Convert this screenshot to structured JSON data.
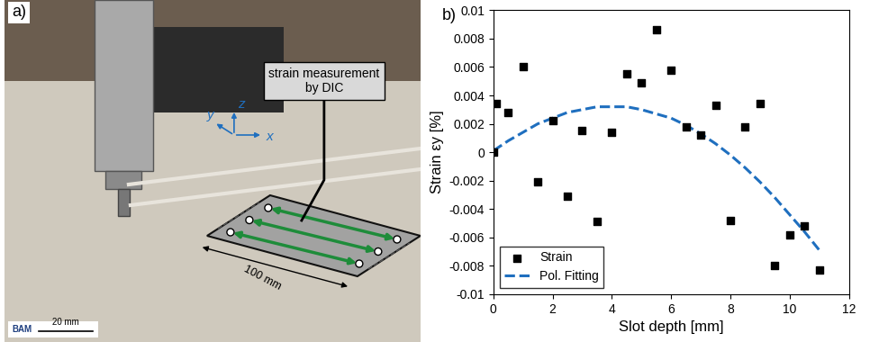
{
  "photo_panel": {
    "panel_label": "a)",
    "callout": "strain measurement\nby DIC",
    "length_label": "100 mm",
    "axis_labels": [
      "x",
      "y",
      "z"
    ],
    "logo": "BAM",
    "scale_bar": "20 mm"
  },
  "chart_data": {
    "type": "scatter",
    "panel_label": "b)",
    "x_label": "Slot depth [mm]",
    "y_label": "Strain εy [%]",
    "xlim": [
      0,
      12
    ],
    "xticks": [
      0,
      2,
      4,
      6,
      8,
      10,
      12
    ],
    "ylim": [
      -0.01,
      0.01
    ],
    "yticks": [
      -0.01,
      -0.008,
      -0.006,
      -0.004,
      -0.002,
      0,
      0.002,
      0.004,
      0.006,
      0.008,
      0.01
    ],
    "grid": false,
    "legend": "lower left",
    "series": [
      {
        "name": "Strain",
        "type": "scatter",
        "color": "#000000",
        "marker": "square",
        "x": [
          0,
          0.1,
          0.5,
          1.0,
          1.5,
          2.0,
          2.5,
          3.0,
          3.5,
          4.0,
          4.5,
          5.0,
          5.5,
          6.0,
          6.5,
          7.0,
          7.5,
          8.0,
          8.5,
          9.0,
          9.5,
          10.0,
          10.5,
          11.0
        ],
        "values": [
          0.0,
          0.0034,
          0.0028,
          0.006,
          -0.0021,
          0.0022,
          -0.0031,
          0.0015,
          -0.0049,
          0.0014,
          0.0055,
          0.0049,
          0.0086,
          0.0058,
          0.0018,
          0.0012,
          0.0033,
          -0.0048,
          0.0018,
          0.0034,
          -0.008,
          -0.0058,
          -0.0052,
          -0.0083
        ]
      },
      {
        "name": "Pol. Fitting",
        "type": "line",
        "color": "#1f6fbf",
        "line_style": "dashed",
        "x": [
          0,
          0.5,
          1.0,
          1.5,
          2.0,
          2.5,
          3.0,
          3.5,
          4.0,
          4.5,
          5.0,
          5.5,
          6.0,
          6.5,
          7.0,
          7.5,
          8.0,
          8.5,
          9.0,
          9.5,
          10.0,
          10.5,
          11.0
        ],
        "values": [
          0.0001,
          0.0008,
          0.0014,
          0.002,
          0.0024,
          0.0028,
          0.003,
          0.0032,
          0.0032,
          0.0032,
          0.003,
          0.0027,
          0.0024,
          0.0019,
          0.0013,
          0.0006,
          -0.0002,
          -0.0011,
          -0.0021,
          -0.0032,
          -0.0044,
          -0.0056,
          -0.0069
        ]
      }
    ]
  }
}
